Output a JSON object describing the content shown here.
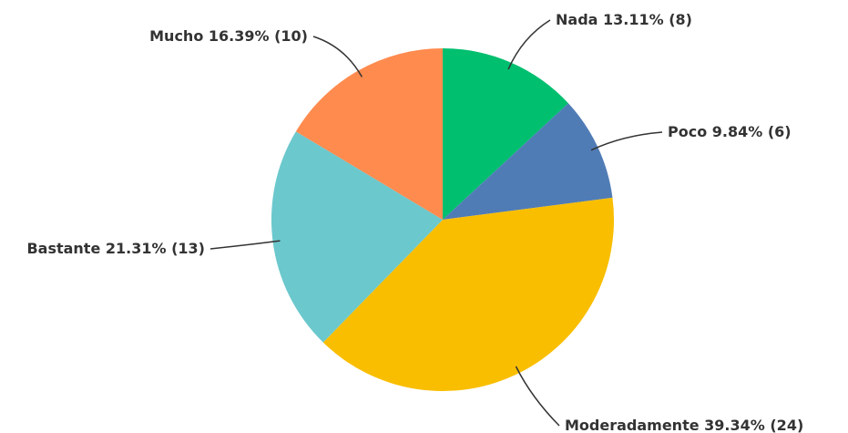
{
  "chart_data": {
    "type": "pie",
    "categories": [
      "Nada",
      "Poco",
      "Moderadamente",
      "Bastante",
      "Mucho"
    ],
    "values": [
      13.11,
      9.84,
      39.34,
      21.31,
      16.39
    ],
    "value_labels": [
      "13.11% (8)",
      "9.84% (6)",
      "39.34% (24)",
      "21.31% (13)",
      "16.39% (10)"
    ],
    "colors": [
      "#00bf6f",
      "#507cb6",
      "#f9be00",
      "#6bc8cd",
      "#ff8b4f"
    ]
  }
}
